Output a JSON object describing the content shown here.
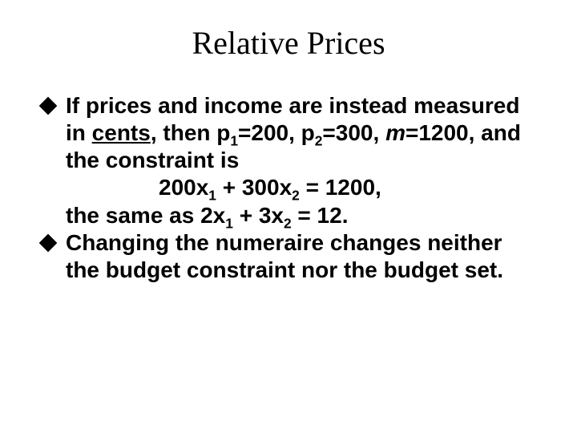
{
  "title": "Relative Prices",
  "bullets": {
    "b1_part1": "If prices and income are instead measured in ",
    "b1_cents": "cents",
    "b1_part2": ", then p",
    "b1_sub1": "1",
    "b1_part3": "=200, p",
    "b1_sub2": "2",
    "b1_part4": "=300, ",
    "b1_m": "m",
    "b1_part5": "=1200, and the constraint is",
    "b1_eq1a": "200x",
    "b1_eq1s1": "1",
    "b1_eq1b": " + 300x",
    "b1_eq1s2": "2",
    "b1_eq1c": " = 1200",
    "b1_comma": ",",
    "b1_part6": "the same as ",
    "b1_eq2a": "2x",
    "b1_eq2s1": "1",
    "b1_eq2b": " + 3x",
    "b1_eq2s2": "2",
    "b1_eq2c": " = 12",
    "b1_period": ".",
    "b2": "Changing the numeraire changes neither the budget constraint nor the budget set."
  }
}
